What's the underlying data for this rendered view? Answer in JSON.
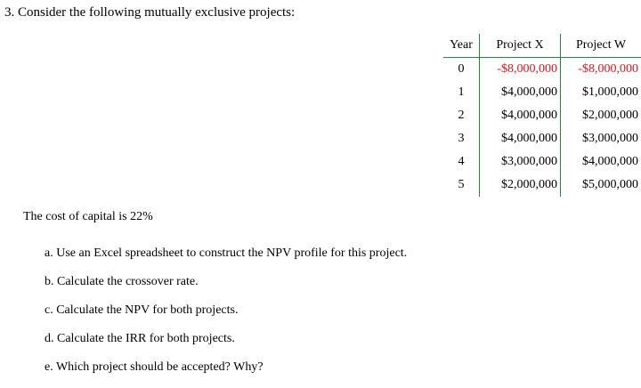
{
  "question": {
    "heading": "3. Consider the following mutually exclusive projects:"
  },
  "table": {
    "headers": [
      "Year",
      "Project X",
      "Project W"
    ],
    "rows": [
      {
        "year": "0",
        "x": "-$8,000,000",
        "w": "-$8,000,000",
        "negative": true
      },
      {
        "year": "1",
        "x": "$4,000,000",
        "w": "$1,000,000",
        "negative": false
      },
      {
        "year": "2",
        "x": "$4,000,000",
        "w": "$2,000,000",
        "negative": false
      },
      {
        "year": "3",
        "x": "$4,000,000",
        "w": "$3,000,000",
        "negative": false
      },
      {
        "year": "4",
        "x": "$3,000,000",
        "w": "$4,000,000",
        "negative": false
      },
      {
        "year": "5",
        "x": "$2,000,000",
        "w": "$5,000,000",
        "negative": false
      }
    ],
    "colors": {
      "border": "#1f8a3a",
      "negative": "#e0161f"
    }
  },
  "cost_of_capital": "The cost of capital is 22%",
  "parts": [
    "a. Use an Excel spreadsheet to construct the NPV profile for this project.",
    "b. Calculate the crossover rate.",
    "c. Calculate the NPV for both projects.",
    "d. Calculate the IRR for both projects.",
    "e. Which project should be accepted? Why?"
  ]
}
